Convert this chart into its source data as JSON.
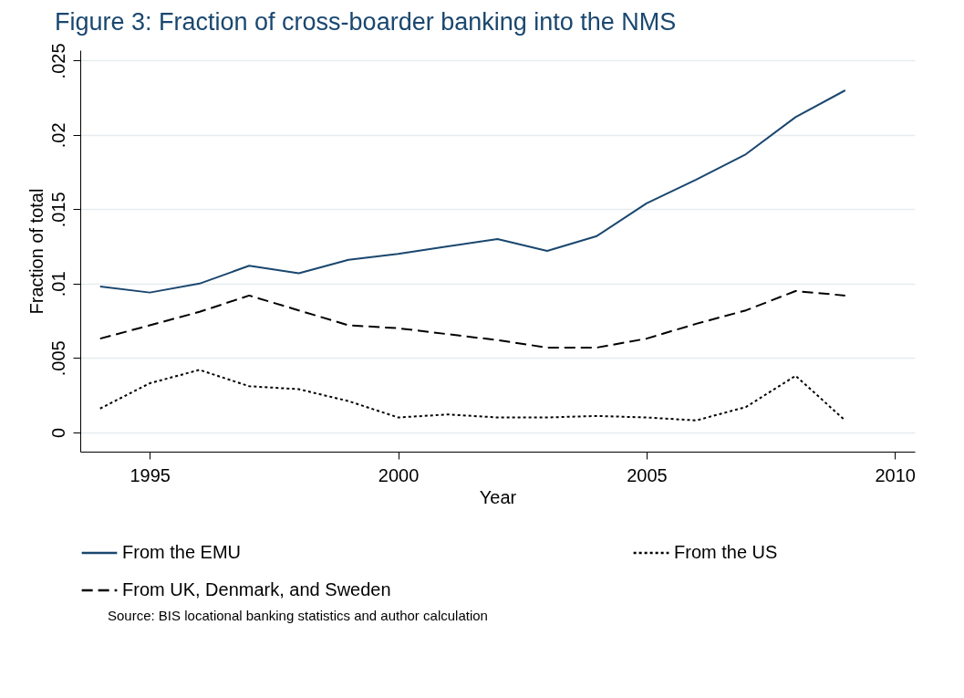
{
  "chart_data": {
    "type": "line",
    "title": "Figure 3: Fraction of cross-boarder banking into the NMS",
    "xlabel": "Year",
    "ylabel": "Fraction of total",
    "x": [
      1994,
      1995,
      1996,
      1997,
      1998,
      1999,
      2000,
      2001,
      2002,
      2003,
      2004,
      2005,
      2006,
      2007,
      2008,
      2009
    ],
    "series": [
      {
        "name": "From the EMU",
        "color": "#1a476f",
        "line_style": "solid",
        "values": [
          0.0098,
          0.0094,
          0.01,
          0.0112,
          0.0107,
          0.0116,
          0.012,
          0.0125,
          0.013,
          0.0122,
          0.0132,
          0.0154,
          0.017,
          0.0187,
          0.0212,
          0.023
        ]
      },
      {
        "name": "From the US",
        "color": "#000000",
        "line_style": "dotted",
        "values": [
          0.0016,
          0.0033,
          0.0042,
          0.0031,
          0.0029,
          0.0021,
          0.001,
          0.0012,
          0.001,
          0.001,
          0.0011,
          0.001,
          0.0008,
          0.0017,
          0.0038,
          0.0008
        ]
      },
      {
        "name": "From UK, Denmark, and Sweden",
        "color": "#000000",
        "line_style": "dashed",
        "values": [
          0.0063,
          0.0072,
          0.0081,
          0.0092,
          0.0082,
          0.0072,
          0.007,
          0.0066,
          0.0062,
          0.0057,
          0.0057,
          0.0063,
          0.0073,
          0.0082,
          0.0095,
          0.0092
        ]
      }
    ],
    "xlim": [
      1993.6,
      2010.4
    ],
    "xticks": [
      1995,
      2000,
      2005,
      2010
    ],
    "ylim": [
      -0.0013,
      0.0257
    ],
    "yticks": [
      0,
      {
        "value": 0.005,
        "label": ".005"
      },
      {
        "value": 0.01,
        "label": ".01"
      },
      {
        "value": 0.015,
        "label": ".015"
      },
      {
        "value": 0.02,
        "label": ".02"
      },
      {
        "value": 0.025,
        "label": ".025"
      }
    ],
    "grid": "y",
    "legend": "bottom",
    "marker": "none",
    "annotations": [
      "Source: BIS locational banking statistics and author calculation"
    ]
  }
}
